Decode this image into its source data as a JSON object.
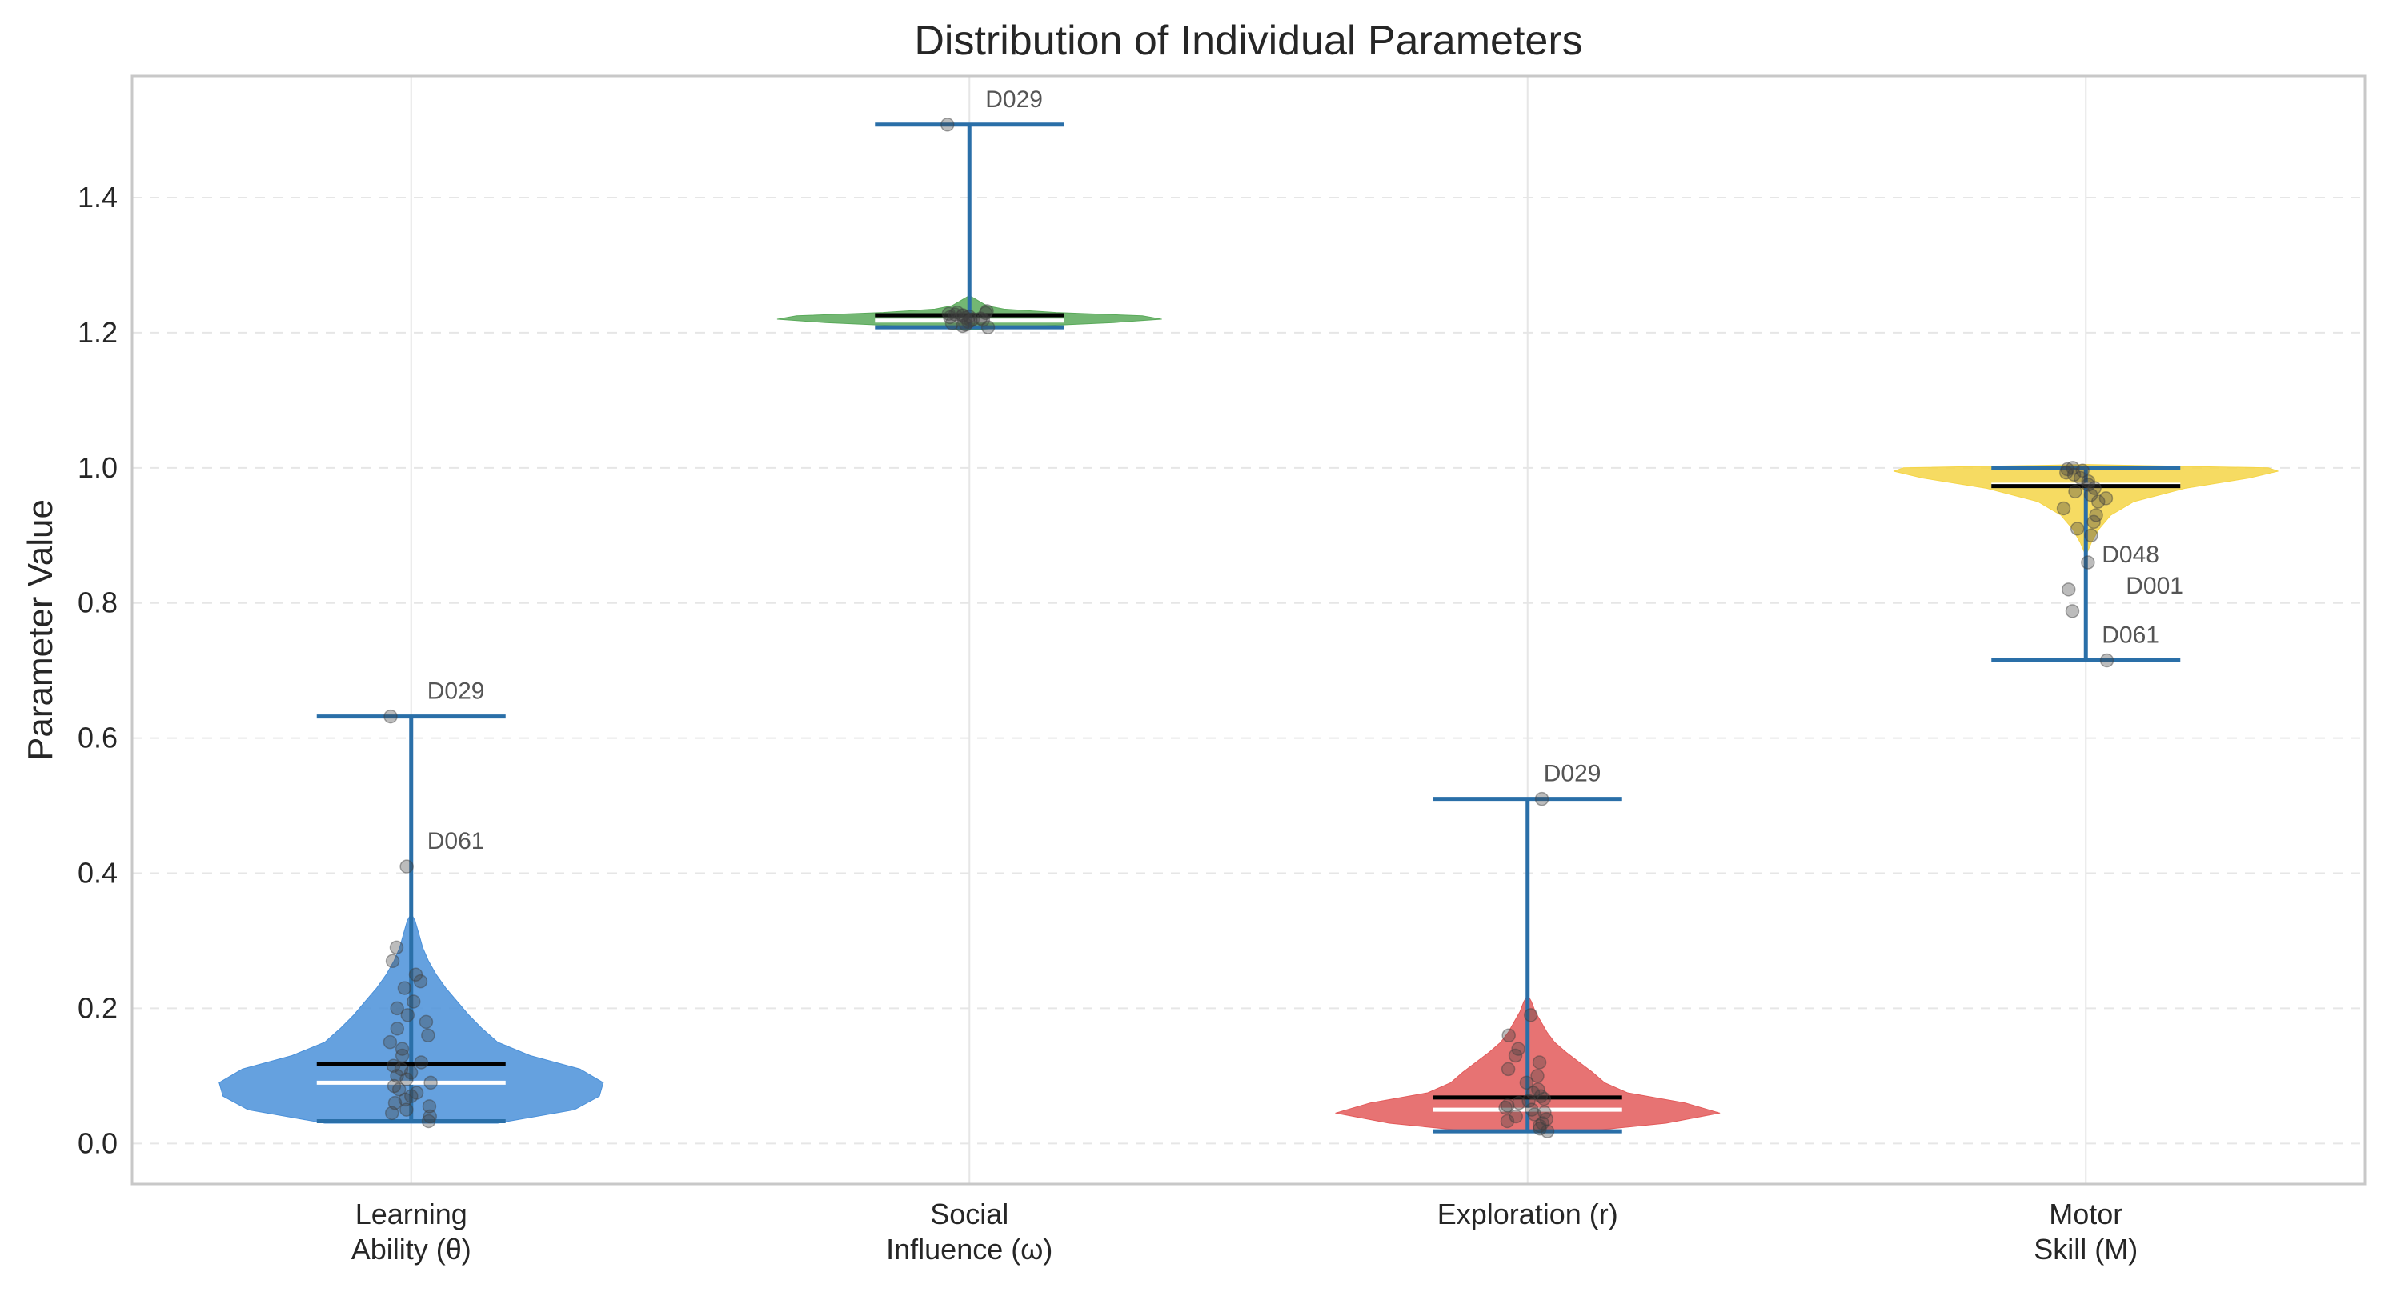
{
  "chart_data": {
    "type": "violin",
    "title": "Distribution of Individual Parameters",
    "xlabel": "",
    "ylabel": "Parameter Value",
    "ylim": [
      -0.06,
      1.58
    ],
    "yticks": [
      0.0,
      0.2,
      0.4,
      0.6,
      0.8,
      1.0,
      1.2,
      1.4
    ],
    "ytick_labels": [
      "0.0",
      "0.2",
      "0.4",
      "0.6",
      "0.8",
      "1.0",
      "1.2",
      "1.4"
    ],
    "grid": true,
    "colors": {
      "axis": "#c8c8c8",
      "grid": "#e6e6e6",
      "whisker": "#2a6fa8",
      "mean": "#000000",
      "median": "#ffffff",
      "point": "#404040",
      "annot_text": "#555555"
    },
    "categories": [
      {
        "label_lines": [
          "Learning",
          "Ability (θ)"
        ],
        "color": "#4a90d9",
        "min": 0.033,
        "max": 0.632,
        "mean": 0.118,
        "median": 0.09,
        "kde": [
          [
            0.03,
            0.45
          ],
          [
            0.05,
            0.85
          ],
          [
            0.07,
            0.98
          ],
          [
            0.09,
            1.0
          ],
          [
            0.11,
            0.88
          ],
          [
            0.13,
            0.62
          ],
          [
            0.15,
            0.45
          ],
          [
            0.17,
            0.37
          ],
          [
            0.19,
            0.3
          ],
          [
            0.21,
            0.24
          ],
          [
            0.23,
            0.18
          ],
          [
            0.25,
            0.13
          ],
          [
            0.27,
            0.09
          ],
          [
            0.29,
            0.06
          ],
          [
            0.31,
            0.04
          ],
          [
            0.33,
            0.02
          ],
          [
            0.34,
            0.0
          ]
        ],
        "points": [
          0.033,
          0.04,
          0.045,
          0.05,
          0.055,
          0.06,
          0.065,
          0.07,
          0.075,
          0.08,
          0.085,
          0.09,
          0.095,
          0.1,
          0.105,
          0.11,
          0.115,
          0.12,
          0.13,
          0.14,
          0.15,
          0.16,
          0.17,
          0.18,
          0.19,
          0.2,
          0.21,
          0.23,
          0.24,
          0.25,
          0.27,
          0.29,
          0.41,
          0.632
        ],
        "annotations": [
          {
            "text": "D029",
            "value": 0.632
          },
          {
            "text": "D061",
            "value": 0.41
          }
        ]
      },
      {
        "label_lines": [
          "Social",
          "Influence (ω)"
        ],
        "color": "#5aaa5a",
        "min": 1.208,
        "max": 1.508,
        "mean": 1.226,
        "median": 1.218,
        "kde": [
          [
            1.205,
            0.05
          ],
          [
            1.21,
            0.35
          ],
          [
            1.215,
            0.75
          ],
          [
            1.22,
            1.0
          ],
          [
            1.225,
            0.9
          ],
          [
            1.23,
            0.45
          ],
          [
            1.235,
            0.18
          ],
          [
            1.24,
            0.09
          ],
          [
            1.245,
            0.06
          ],
          [
            1.25,
            0.03
          ],
          [
            1.255,
            0.0
          ]
        ],
        "points": [
          1.208,
          1.21,
          1.212,
          1.214,
          1.216,
          1.218,
          1.219,
          1.22,
          1.221,
          1.222,
          1.223,
          1.224,
          1.225,
          1.226,
          1.227,
          1.228,
          1.229,
          1.23,
          1.232,
          1.508
        ],
        "annotations": [
          {
            "text": "D029",
            "value": 1.508
          }
        ]
      },
      {
        "label_lines": [
          "Exploration (r)"
        ],
        "color": "#e35a5a",
        "min": 0.018,
        "max": 0.51,
        "mean": 0.068,
        "median": 0.05,
        "kde": [
          [
            0.018,
            0.3
          ],
          [
            0.03,
            0.72
          ],
          [
            0.045,
            1.0
          ],
          [
            0.06,
            0.82
          ],
          [
            0.075,
            0.52
          ],
          [
            0.09,
            0.4
          ],
          [
            0.105,
            0.34
          ],
          [
            0.12,
            0.27
          ],
          [
            0.135,
            0.2
          ],
          [
            0.15,
            0.14
          ],
          [
            0.165,
            0.1
          ],
          [
            0.18,
            0.07
          ],
          [
            0.195,
            0.04
          ],
          [
            0.21,
            0.02
          ],
          [
            0.22,
            0.0
          ]
        ],
        "points": [
          0.018,
          0.022,
          0.026,
          0.03,
          0.033,
          0.036,
          0.04,
          0.043,
          0.046,
          0.05,
          0.053,
          0.056,
          0.06,
          0.063,
          0.066,
          0.07,
          0.075,
          0.08,
          0.09,
          0.1,
          0.11,
          0.12,
          0.13,
          0.14,
          0.16,
          0.19,
          0.51
        ],
        "annotations": [
          {
            "text": "D029",
            "value": 0.51
          }
        ]
      },
      {
        "label_lines": [
          "Motor",
          "Skill (M)"
        ],
        "color": "#f5d547",
        "min": 0.715,
        "max": 1.0,
        "mean": 0.973,
        "median": 0.975,
        "kde": [
          [
            0.87,
            0.0
          ],
          [
            0.89,
            0.03
          ],
          [
            0.91,
            0.07
          ],
          [
            0.93,
            0.13
          ],
          [
            0.95,
            0.25
          ],
          [
            0.97,
            0.52
          ],
          [
            0.985,
            0.85
          ],
          [
            0.995,
            1.0
          ],
          [
            1.0,
            0.95
          ],
          [
            1.005,
            0.0
          ]
        ],
        "points": [
          0.715,
          0.788,
          0.82,
          0.86,
          0.9,
          0.91,
          0.92,
          0.93,
          0.94,
          0.95,
          0.955,
          0.96,
          0.965,
          0.97,
          0.975,
          0.98,
          0.985,
          0.99,
          0.993,
          0.996,
          0.998,
          1.0
        ],
        "annotations": [
          {
            "text": "D048",
            "value": 0.86
          },
          {
            "text": "D001",
            "value": 0.788
          },
          {
            "text": "D061",
            "value": 0.715
          }
        ]
      }
    ]
  }
}
